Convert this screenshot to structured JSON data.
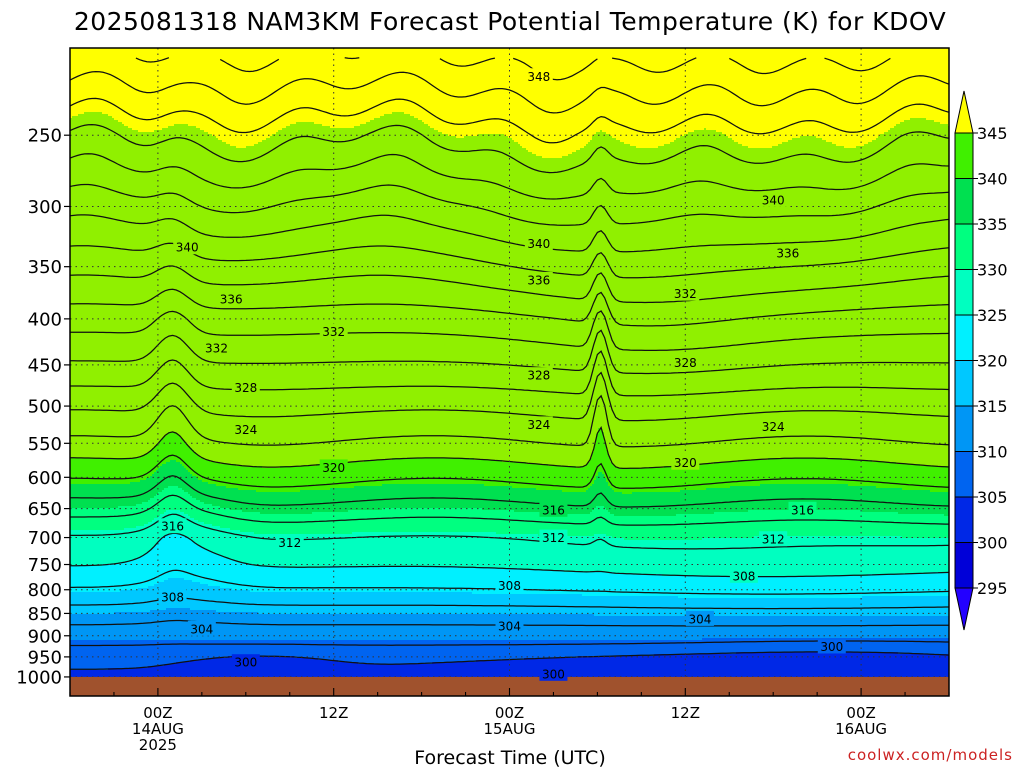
{
  "title": "2025081318 NAM3KM Forecast Potential Temperature (K) for KDOV",
  "credit": "coolwx.com/models",
  "chart_data": {
    "type": "heatmap",
    "title": "2025081318 NAM3KM Forecast Potential Temperature (K) for KDOV",
    "xlabel": "Forecast Time (UTC)",
    "ylabel": "",
    "y_scale": "log",
    "ylim": [
      1050,
      200
    ],
    "xlim_hours": [
      -6,
      54
    ],
    "y_ticks": [
      {
        "value": 250,
        "label": "250"
      },
      {
        "value": 300,
        "label": "300"
      },
      {
        "value": 350,
        "label": "350"
      },
      {
        "value": 400,
        "label": "400"
      },
      {
        "value": 450,
        "label": "450"
      },
      {
        "value": 500,
        "label": "500"
      },
      {
        "value": 550,
        "label": "550"
      },
      {
        "value": 600,
        "label": "600"
      },
      {
        "value": 650,
        "label": "650"
      },
      {
        "value": 700,
        "label": "700"
      },
      {
        "value": 750,
        "label": "750"
      },
      {
        "value": 800,
        "label": "800"
      },
      {
        "value": 850,
        "label": "850"
      },
      {
        "value": 900,
        "label": "900"
      },
      {
        "value": 950,
        "label": "950"
      },
      {
        "value": 1000,
        "label": "1000"
      }
    ],
    "x_ticks": [
      {
        "hour": 0,
        "lines": [
          "00Z",
          "14AUG",
          "2025"
        ]
      },
      {
        "hour": 12,
        "lines": [
          "12Z"
        ]
      },
      {
        "hour": 24,
        "lines": [
          "00Z",
          "15AUG"
        ]
      },
      {
        "hour": 36,
        "lines": [
          "12Z"
        ]
      },
      {
        "hour": 48,
        "lines": [
          "00Z",
          "16AUG"
        ]
      }
    ],
    "grid": true,
    "contour_interval": 2,
    "profile": [
      {
        "p": 1000,
        "theta": 299.5
      },
      {
        "p": 950,
        "theta": 300.8
      },
      {
        "p": 900,
        "theta": 303.0
      },
      {
        "p": 850,
        "theta": 305.0
      },
      {
        "p": 800,
        "theta": 307.8
      },
      {
        "p": 750,
        "theta": 310.2
      },
      {
        "p": 700,
        "theta": 312.0
      },
      {
        "p": 650,
        "theta": 315.3
      },
      {
        "p": 600,
        "theta": 318.6
      },
      {
        "p": 550,
        "theta": 321.8
      },
      {
        "p": 500,
        "theta": 324.5
      },
      {
        "p": 450,
        "theta": 327.8
      },
      {
        "p": 400,
        "theta": 331.0
      },
      {
        "p": 350,
        "theta": 335.0
      },
      {
        "p": 300,
        "theta": 339.5
      },
      {
        "p": 250,
        "theta": 344.5
      },
      {
        "p": 200,
        "theta": 350.5
      }
    ],
    "contour_labels": [
      {
        "hour": 26.0,
        "p": 215,
        "text": "348"
      },
      {
        "hour": 2.0,
        "p": 333,
        "text": "340"
      },
      {
        "hour": 26.0,
        "p": 330,
        "text": "340"
      },
      {
        "hour": 42.0,
        "p": 295,
        "text": "340"
      },
      {
        "hour": 5.0,
        "p": 380,
        "text": "336"
      },
      {
        "hour": 26.0,
        "p": 362,
        "text": "336"
      },
      {
        "hour": 43.0,
        "p": 338,
        "text": "336"
      },
      {
        "hour": 12.0,
        "p": 413,
        "text": "332"
      },
      {
        "hour": 4.0,
        "p": 431,
        "text": "332"
      },
      {
        "hour": 36.0,
        "p": 375,
        "text": "332"
      },
      {
        "hour": 6.0,
        "p": 477,
        "text": "328"
      },
      {
        "hour": 26.0,
        "p": 462,
        "text": "328"
      },
      {
        "hour": 36.0,
        "p": 447,
        "text": "328"
      },
      {
        "hour": 6.0,
        "p": 531,
        "text": "324"
      },
      {
        "hour": 26.0,
        "p": 524,
        "text": "324"
      },
      {
        "hour": 42.0,
        "p": 527,
        "text": "324"
      },
      {
        "hour": 12.0,
        "p": 585,
        "text": "320"
      },
      {
        "hour": 36.0,
        "p": 578,
        "text": "320"
      },
      {
        "hour": 1.0,
        "p": 680,
        "text": "316"
      },
      {
        "hour": 27.0,
        "p": 652,
        "text": "316"
      },
      {
        "hour": 44.0,
        "p": 652,
        "text": "316"
      },
      {
        "hour": 9.0,
        "p": 709,
        "text": "312"
      },
      {
        "hour": 27.0,
        "p": 700,
        "text": "312"
      },
      {
        "hour": 42.0,
        "p": 703,
        "text": "312"
      },
      {
        "hour": 1.0,
        "p": 815,
        "text": "308"
      },
      {
        "hour": 24.0,
        "p": 791,
        "text": "308"
      },
      {
        "hour": 40.0,
        "p": 772,
        "text": "308"
      },
      {
        "hour": 3.0,
        "p": 884,
        "text": "304"
      },
      {
        "hour": 24.0,
        "p": 878,
        "text": "304"
      },
      {
        "hour": 37.0,
        "p": 862,
        "text": "304"
      },
      {
        "hour": 6.0,
        "p": 963,
        "text": "300"
      },
      {
        "hour": 27.0,
        "p": 992,
        "text": "300"
      },
      {
        "hour": 46.0,
        "p": 925,
        "text": "300"
      }
    ],
    "colorbar": {
      "levels": [
        "295",
        "300",
        "305",
        "310",
        "315",
        "320",
        "325",
        "330",
        "335",
        "340",
        "345"
      ],
      "colors": [
        "#2300ff",
        "#0000d8",
        "#0028e6",
        "#0064f0",
        "#0096f5",
        "#00c8ff",
        "#00f0ff",
        "#00ffc0",
        "#00ff80",
        "#00e050",
        "#40f000",
        "#90f000",
        "#ffff00"
      ],
      "extend": "both"
    }
  }
}
